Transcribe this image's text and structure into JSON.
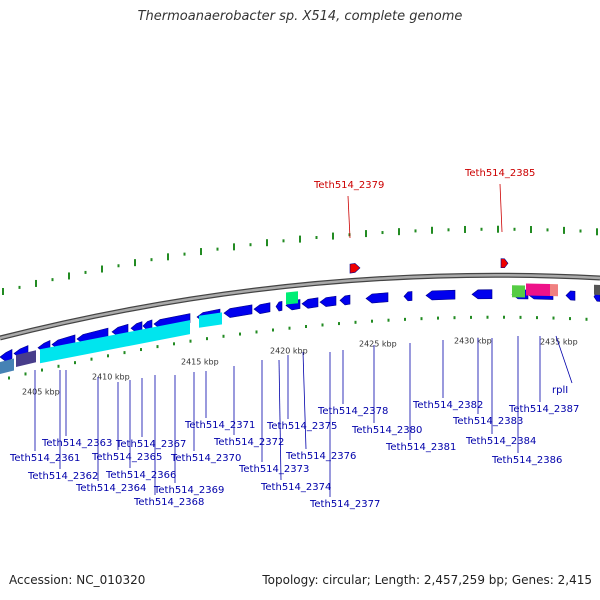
{
  "title": "Thermoanaerobacter sp. X514, complete genome",
  "accession": "Accession: NC_010320",
  "summary": "Topology: circular; Length: 2,457,259 bp; Genes: 2,415",
  "colors": {
    "backbone": "#888888",
    "gene_forward": "#0000ee",
    "gene_reverse": "#0000ee",
    "highlight": "#ee0000",
    "label_default": "#0000aa",
    "label_highlight": "#cc0000",
    "gc_marks": "#228b22",
    "rrna_cyan": "#00e5ee",
    "rrna_green": "#00ee76",
    "trna_pink": "#ee1289"
  },
  "ticks": [
    {
      "label": "2405 kbp"
    },
    {
      "label": "2410 kbp"
    },
    {
      "label": "2415 kbp"
    },
    {
      "label": "2420 kbp"
    },
    {
      "label": "2425 kbp"
    },
    {
      "label": "2430 kbp"
    },
    {
      "label": "2435 kbp"
    }
  ],
  "gene_labels": [
    {
      "text": "Teth514_2379",
      "highlight": true
    },
    {
      "text": "Teth514_2385",
      "highlight": true
    },
    {
      "text": "Teth514_2361",
      "highlight": false
    },
    {
      "text": "Teth514_2362",
      "highlight": false
    },
    {
      "text": "Teth514_2363",
      "highlight": false
    },
    {
      "text": "Teth514_2364",
      "highlight": false
    },
    {
      "text": "Teth514_2365",
      "highlight": false
    },
    {
      "text": "Teth514_2366",
      "highlight": false
    },
    {
      "text": "Teth514_2367",
      "highlight": false
    },
    {
      "text": "Teth514_2368",
      "highlight": false
    },
    {
      "text": "Teth514_2369",
      "highlight": false
    },
    {
      "text": "Teth514_2370",
      "highlight": false
    },
    {
      "text": "Teth514_2371",
      "highlight": false
    },
    {
      "text": "Teth514_2372",
      "highlight": false
    },
    {
      "text": "Teth514_2373",
      "highlight": false
    },
    {
      "text": "Teth514_2374",
      "highlight": false
    },
    {
      "text": "Teth514_2375",
      "highlight": false
    },
    {
      "text": "Teth514_2376",
      "highlight": false
    },
    {
      "text": "Teth514_2377",
      "highlight": false
    },
    {
      "text": "Teth514_2378",
      "highlight": false
    },
    {
      "text": "Teth514_2380",
      "highlight": false
    },
    {
      "text": "Teth514_2381",
      "highlight": false
    },
    {
      "text": "Teth514_2382",
      "highlight": false
    },
    {
      "text": "Teth514_2383",
      "highlight": false
    },
    {
      "text": "Teth514_2384",
      "highlight": false
    },
    {
      "text": "Teth514_2386",
      "highlight": false
    },
    {
      "text": "Teth514_2387",
      "highlight": false
    },
    {
      "text": "rplI",
      "highlight": false
    }
  ]
}
